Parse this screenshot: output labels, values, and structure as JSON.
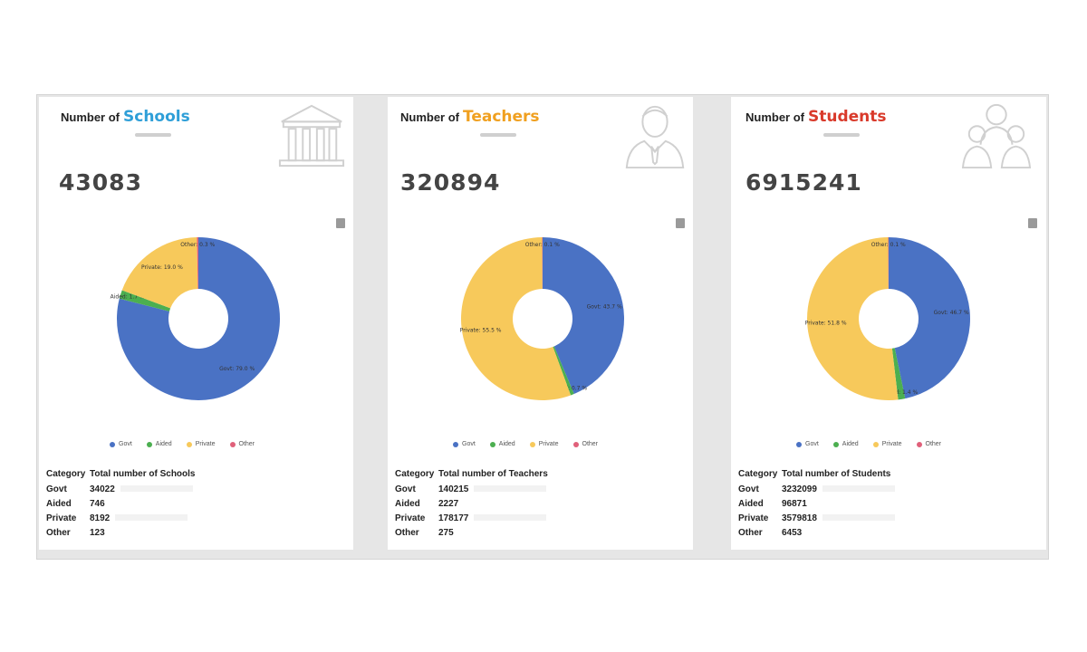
{
  "colors": {
    "gov": "#4a72c4",
    "aided": "#4caf50",
    "private": "#f7c95b",
    "other": "#e0607a",
    "schools_accent": "#2f9fd8",
    "teachers_accent": "#f0a020",
    "students_accent": "#d93a2b"
  },
  "legend": [
    "Govt",
    "Aided",
    "Private",
    "Other"
  ],
  "cards": [
    {
      "title_prefix": "Number of",
      "title_accent": "Schools",
      "icon": "school-building-icon",
      "total": "43083",
      "table_header_category": "Category",
      "table_header_total": "Total number of Schools",
      "rows": [
        {
          "category": "Govt",
          "value": "34022"
        },
        {
          "category": "Aided",
          "value": "746"
        },
        {
          "category": "Private",
          "value": "8192"
        },
        {
          "category": "Other",
          "value": "123"
        }
      ]
    },
    {
      "title_prefix": "Number of",
      "title_accent": "Teachers",
      "icon": "teacher-person-icon",
      "total": "320894",
      "table_header_category": "Category",
      "table_header_total": "Total number of Teachers",
      "rows": [
        {
          "category": "Govt",
          "value": "140215"
        },
        {
          "category": "Aided",
          "value": "2227"
        },
        {
          "category": "Private",
          "value": "178177"
        },
        {
          "category": "Other",
          "value": "275"
        }
      ]
    },
    {
      "title_prefix": "Number of",
      "title_accent": "Students",
      "icon": "students-group-icon",
      "total": "6915241",
      "table_header_category": "Category",
      "table_header_total": "Total number of Students",
      "rows": [
        {
          "category": "Govt",
          "value": "3232099"
        },
        {
          "category": "Aided",
          "value": "96871"
        },
        {
          "category": "Private",
          "value": "3579818"
        },
        {
          "category": "Other",
          "value": "6453"
        }
      ]
    }
  ],
  "chart_data": [
    {
      "type": "pie",
      "categories": [
        "Govt",
        "Aided",
        "Private",
        "Other"
      ],
      "values": [
        34022,
        746,
        8192,
        123
      ],
      "slice_labels": [
        "Govt: 79.0 %",
        "Aided: 1.7 %",
        "Private: 19.0 %",
        "Other: 0.3 %"
      ]
    },
    {
      "type": "pie",
      "categories": [
        "Govt",
        "Aided",
        "Private",
        "Other"
      ],
      "values": [
        140215,
        2227,
        178177,
        275
      ],
      "slice_labels": [
        "Govt: 43.7 %",
        "Aided: 0.7 %",
        "Private: 55.5 %",
        "Other: 0.1 %"
      ]
    },
    {
      "type": "pie",
      "categories": [
        "Govt",
        "Aided",
        "Private",
        "Other"
      ],
      "values": [
        3232099,
        96871,
        3579818,
        6453
      ],
      "slice_labels": [
        "Govt: 46.7 %",
        "Aided: 1.4 %",
        "Private: 51.8 %",
        "Other: 0.1 %"
      ]
    }
  ]
}
